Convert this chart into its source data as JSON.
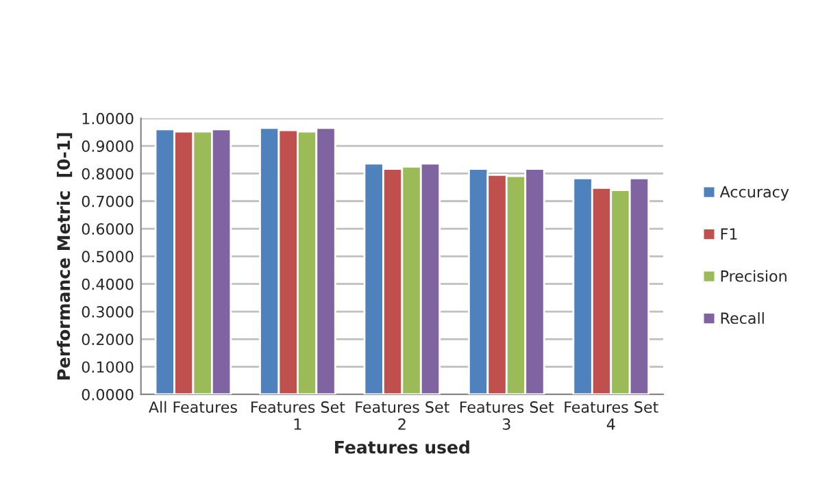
{
  "chart_data": {
    "type": "bar",
    "xlabel": "Features used",
    "ylabel": "Performance Metric  [0-1]",
    "categories": [
      "All Features",
      "Features Set\n1",
      "Features Set\n2",
      "Features Set\n3",
      "Features Set\n4"
    ],
    "series": [
      {
        "name": "Accuracy",
        "color": "#4f81bd",
        "values": [
          0.96,
          0.965,
          0.836,
          0.817,
          0.783
        ]
      },
      {
        "name": "F1",
        "color": "#c0504d",
        "values": [
          0.952,
          0.957,
          0.817,
          0.795,
          0.748
        ]
      },
      {
        "name": "Precision",
        "color": "#9bbb59",
        "values": [
          0.952,
          0.952,
          0.825,
          0.791,
          0.74
        ]
      },
      {
        "name": "Recall",
        "color": "#8064a2",
        "values": [
          0.96,
          0.965,
          0.836,
          0.817,
          0.783
        ]
      }
    ],
    "ylim": [
      0,
      1
    ],
    "yticks": [
      {
        "value": 0,
        "label": "0.0000"
      },
      {
        "value": 0.1,
        "label": "0.1000"
      },
      {
        "value": 0.2,
        "label": "0.2000"
      },
      {
        "value": 0.3,
        "label": "0.3000"
      },
      {
        "value": 0.4,
        "label": "0.4000"
      },
      {
        "value": 0.5,
        "label": "0.5000"
      },
      {
        "value": 0.6,
        "label": "0.6000"
      },
      {
        "value": 0.7,
        "label": "0.7000"
      },
      {
        "value": 0.8,
        "label": "0.8000"
      },
      {
        "value": 0.9,
        "label": "0.9000"
      },
      {
        "value": 1,
        "label": "1.0000"
      }
    ],
    "grid": "y",
    "legend": "right"
  }
}
